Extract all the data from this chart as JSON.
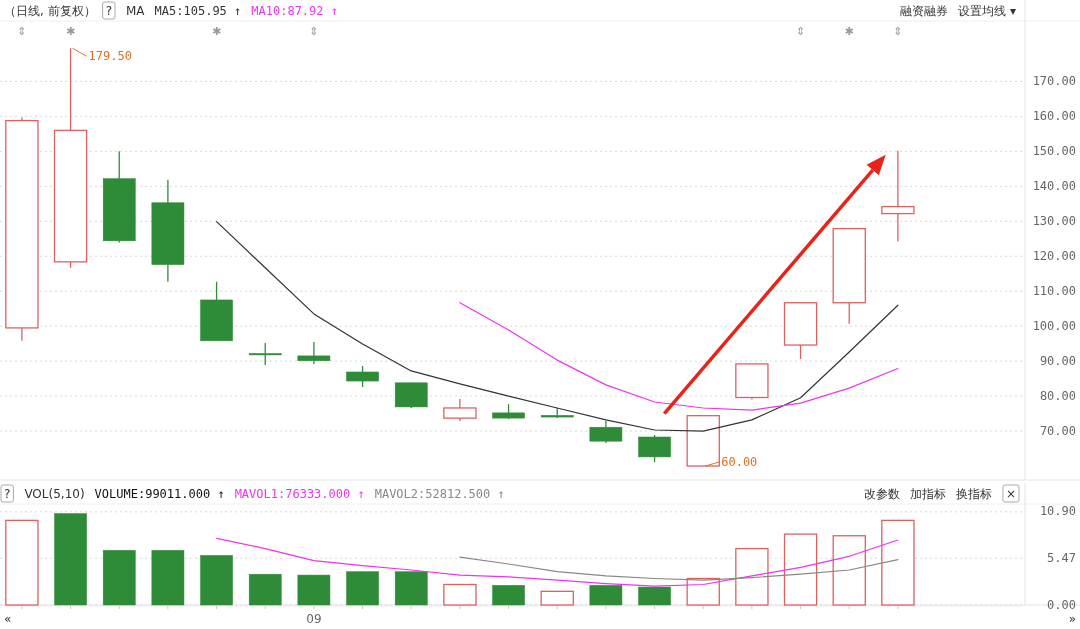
{
  "chart_data": [
    {
      "type": "candlestick",
      "title": "（日线, 前复权）",
      "categories": [
        null,
        null,
        null,
        null,
        null,
        null,
        null,
        null,
        null,
        null,
        null,
        null,
        null,
        null,
        null,
        null,
        null,
        null,
        null
      ],
      "ohlc": [
        [
          99.5,
          159.7,
          95.8,
          158.8
        ],
        [
          118.4,
          179.5,
          116.7,
          156.0
        ],
        [
          142.2,
          150.0,
          123.9,
          124.4
        ],
        [
          135.3,
          141.9,
          112.7,
          117.6
        ],
        [
          107.5,
          112.7,
          95.8,
          95.8
        ],
        [
          92.2,
          95.2,
          88.9,
          92.0
        ],
        [
          91.5,
          95.5,
          89.2,
          90.1
        ],
        [
          86.9,
          88.6,
          82.6,
          84.3
        ],
        [
          83.8,
          83.9,
          76.6,
          76.9
        ],
        [
          73.7,
          79.2,
          72.9,
          76.6
        ],
        [
          75.2,
          77.7,
          73.4,
          73.7
        ],
        [
          74.5,
          76.6,
          73.7,
          74.0
        ],
        [
          71.1,
          72.9,
          66.6,
          67.1
        ],
        [
          68.3,
          68.9,
          61.1,
          62.6
        ],
        [
          60.0,
          74.6,
          60.0,
          74.4
        ],
        [
          79.6,
          89.2,
          79.0,
          89.2
        ],
        [
          94.6,
          106.9,
          90.6,
          106.7
        ],
        [
          106.7,
          127.9,
          100.7,
          127.9
        ],
        [
          132.2,
          150.2,
          124.2,
          134.2
        ]
      ],
      "colors": [
        "#e06060",
        "#e06060",
        "#2e8b37",
        "#2e8b37",
        "#2e8b37",
        "#2e8b37",
        "#2e8b37",
        "#2e8b37",
        "#2e8b37",
        "#e06060",
        "#2e8b37",
        "#2e8b37",
        "#2e8b37",
        "#2e8b37",
        "#e06060",
        "#e06060",
        "#e06060",
        "#e06060",
        "#e06060"
      ],
      "series": [
        {
          "name": "MA5:105.95 ↑",
          "type": "line",
          "color": "#333333",
          "values": [
            null,
            null,
            null,
            null,
            129.9,
            116.7,
            103.5,
            94.9,
            87.2,
            83.5,
            80.0,
            76.6,
            73.2,
            70.3,
            70.0,
            73.2,
            79.5,
            92.6,
            106.0
          ]
        },
        {
          "name": "MA10:87.92 ↑",
          "type": "line",
          "color": "#ee33ee",
          "values": [
            null,
            null,
            null,
            null,
            null,
            null,
            null,
            null,
            null,
            106.7,
            98.9,
            90.3,
            83.2,
            78.3,
            76.6,
            76.0,
            78.0,
            82.3,
            87.9
          ]
        }
      ],
      "ylim": [
        56,
        187
      ],
      "yticks": [
        {
          "value": 70,
          "label": "70.00"
        },
        {
          "value": 80,
          "label": "80.00"
        },
        {
          "value": 90,
          "label": "90.00"
        },
        {
          "value": 100,
          "label": "100.00"
        },
        {
          "value": 110,
          "label": "110.00"
        },
        {
          "value": 120,
          "label": "120.00"
        },
        {
          "value": 130,
          "label": "130.00"
        },
        {
          "value": 140,
          "label": "140.00"
        },
        {
          "value": 150,
          "label": "150.00"
        },
        {
          "value": 160,
          "label": "160.00"
        },
        {
          "value": 170,
          "label": "170.00"
        }
      ],
      "grid": "y",
      "tick_labels": "y",
      "legend": "top left",
      "annotations": [
        "?",
        "MA",
        "融资融券",
        "设置均线 ▾",
        "179.50",
        "60.00",
        "⇕",
        "✱",
        "✱",
        "⇕",
        "⇕",
        "✱",
        "⇕"
      ]
    },
    {
      "type": "bar",
      "title": "VOL(5,10)",
      "categories": [
        null,
        null,
        null,
        null,
        null,
        null,
        "09",
        null,
        null,
        null,
        null,
        null,
        null,
        null,
        null,
        null,
        null,
        null,
        null
      ],
      "series": [
        {
          "name": "VOLUME:99011.000 ↑",
          "type": "bar",
          "colors": [
            "#e06060",
            "#2e8b37",
            "#2e8b37",
            "#2e8b37",
            "#2e8b37",
            "#2e8b37",
            "#2e8b37",
            "#2e8b37",
            "#2e8b37",
            "#e06060",
            "#2e8b37",
            "#e06060",
            "#2e8b37",
            "#2e8b37",
            "#e06060",
            "#e06060",
            "#e06060",
            "#e06060",
            "#e06060"
          ],
          "values": [
            9.9,
            10.7,
            6.4,
            6.4,
            5.8,
            3.6,
            3.5,
            3.9,
            3.9,
            2.4,
            2.3,
            1.6,
            2.3,
            2.1,
            3.1,
            6.6,
            8.3,
            8.1,
            9.9
          ]
        },
        {
          "name": "MAVOL1:76333.000 ↑",
          "type": "line",
          "color": "#ee33ee",
          "values": [
            null,
            null,
            null,
            null,
            7.8,
            6.6,
            5.2,
            4.6,
            4.1,
            3.5,
            3.3,
            2.9,
            2.5,
            2.2,
            2.4,
            3.4,
            4.4,
            5.7,
            7.6
          ]
        },
        {
          "name": "MAVOL2:52812.500 ↑",
          "type": "line",
          "color": "#888888",
          "values": [
            null,
            null,
            null,
            null,
            null,
            null,
            null,
            null,
            null,
            5.6,
            4.8,
            3.9,
            3.4,
            3.1,
            2.9,
            3.2,
            3.6,
            4.1,
            5.3
          ]
        }
      ],
      "ylim": [
        0,
        11.7
      ],
      "yticks": [
        {
          "value": 0,
          "label": "0.00"
        },
        {
          "value": 5.47,
          "label": "5.47"
        },
        {
          "value": 10.9,
          "label": "10.90"
        }
      ],
      "grid": "y",
      "legend": "top left",
      "annotations": [
        "?",
        "改参数",
        "加指标",
        "换指标",
        "×",
        "«",
        "»"
      ]
    }
  ]
}
